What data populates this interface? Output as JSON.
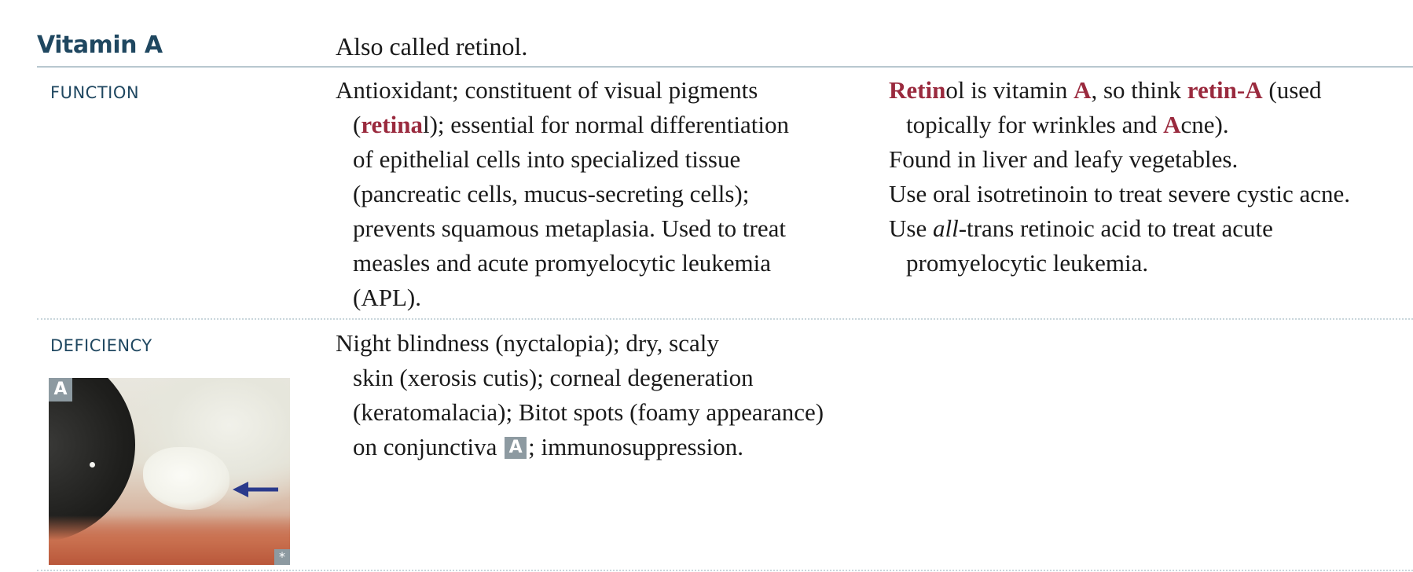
{
  "header": {
    "title": "Vitamin A",
    "description": "Also called retinol."
  },
  "function": {
    "label": "FUNCTION",
    "main": {
      "l1": "Antioxidant; constituent of visual pigments",
      "l2_open": "(",
      "l2_red": "retina",
      "l2_rest": "l); essential for normal differentiation",
      "l3": "of epithelial cells into specialized tissue",
      "l4": "(pancreatic cells, mucus-secreting cells);",
      "l5": "prevents squamous metaplasia. Used to treat",
      "l6": "measles and acute promyelocytic leukemia",
      "l7": "(APL)."
    },
    "notes": {
      "n1_red1": "Retin",
      "n1_t1": "ol is vitamin ",
      "n1_red2": "A",
      "n1_t2": ", so think ",
      "n1_red3": "retin-A",
      "n1_t3": " (used",
      "n2_t1": "topically for wrinkles and ",
      "n2_red": "A",
      "n2_t2": "cne).",
      "n3": "Found in liver and leafy vegetables.",
      "n4": "Use oral isotretinoin to treat severe cystic acne.",
      "n5_t1": "Use ",
      "n5_ital": "all",
      "n5_t2": "-trans retinoic acid to treat acute",
      "n6": "promyelocytic leukemia."
    }
  },
  "deficiency": {
    "label": "DEFICIENCY",
    "main": {
      "l1": "Night blindness (nyctalopia); dry, scaly",
      "l2": "skin (xerosis cutis); corneal degeneration",
      "l3": "(keratomalacia); Bitot spots (foamy appearance)",
      "l4_t1": "on conjunctiva ",
      "l4_badge": "A",
      "l4_t2": "; immunosuppression."
    },
    "image": {
      "badge": "A",
      "copyright_mark": "*",
      "icon": "arrow-left-icon",
      "arrow_color": "#2b3a8c"
    }
  },
  "colors": {
    "heading": "#1f4760",
    "emphasis": "#9a2a3e",
    "badge": "#8d9aa1"
  }
}
